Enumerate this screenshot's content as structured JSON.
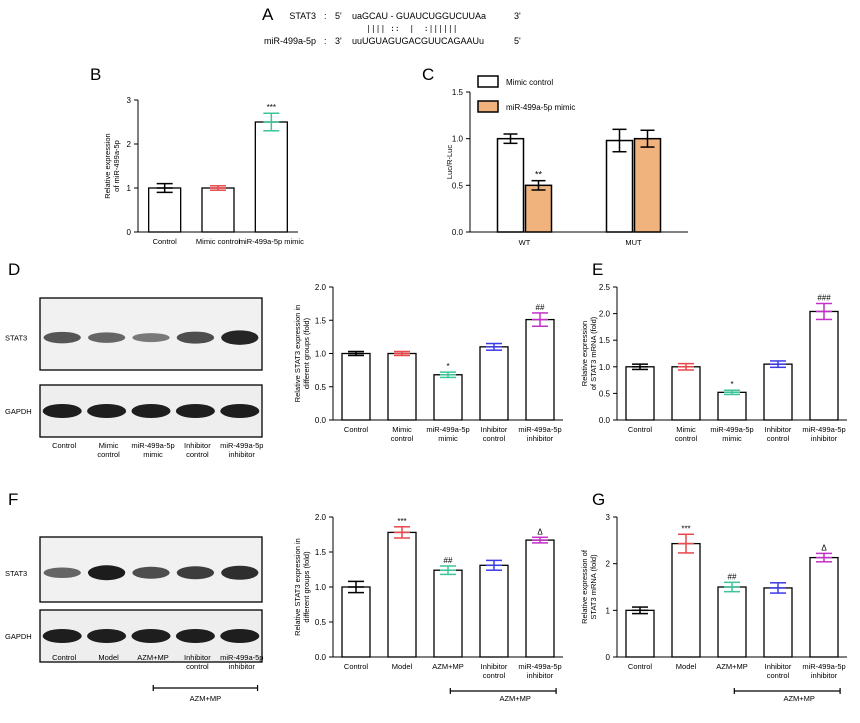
{
  "panel_letters": {
    "A": "A",
    "B": "B",
    "C": "C",
    "D": "D",
    "E": "E",
    "F": "F",
    "G": "G"
  },
  "sequence_panel": {
    "rows": [
      {
        "name": "STAT3",
        "sep": ":",
        "end5": "5'",
        "seq": "uaGCAU - GUAUCUGGUCUUAa",
        "end3": "3'"
      },
      {
        "name": "miR-499a-5p",
        "sep": ":",
        "end5": "3'",
        "seq": "uuUGUAGUGACGUUCAGAAUu",
        "end3": "5'"
      }
    ],
    "pairing": "|||| ::  |  :||||||"
  },
  "chart_data": [
    {
      "panel": "B",
      "type": "bar",
      "ylabel": "Relative expression\nof miR-499a-5p",
      "ylim": [
        0,
        3
      ],
      "ticks": [
        0,
        1,
        2,
        3
      ],
      "categories": [
        "Control",
        "Mimic control",
        "miR-499a-5p mimic"
      ],
      "values": [
        1.0,
        1.0,
        2.5
      ],
      "errors": [
        0.1,
        0.05,
        0.2
      ],
      "bar_colors": [
        "#ffffff",
        "#ffffff",
        "#ffffff"
      ],
      "err_colors": [
        "#000000",
        "#e8474b",
        "#3cc49a"
      ],
      "sig": [
        "",
        "",
        "***"
      ]
    },
    {
      "panel": "C",
      "type": "bar",
      "ylabel": "Luc/R-Luc",
      "ylim": [
        0,
        1.5
      ],
      "ticks": [
        0.0,
        0.5,
        1.0,
        1.5
      ],
      "categories": [
        "WT",
        "MUT"
      ],
      "series": [
        {
          "name": "Mimic control",
          "values": [
            1.0,
            0.98
          ],
          "errors": [
            0.05,
            0.12
          ],
          "color": "#ffffff"
        },
        {
          "name": "miR-499a-5p mimic",
          "values": [
            0.5,
            1.0
          ],
          "errors": [
            0.05,
            0.09
          ],
          "color": "#f0b37e"
        }
      ],
      "sig": [
        [
          "",
          ""
        ],
        [
          "**",
          ""
        ]
      ],
      "legend": "top-right"
    },
    {
      "panel": "D",
      "type": "bar",
      "ylabel": "Relative STAT3 expression in\ndifferent groups (fold)",
      "ylim": [
        0,
        2.0
      ],
      "ticks": [
        0.0,
        0.5,
        1.0,
        1.5,
        2.0
      ],
      "categories": [
        "Control",
        "Mimic\ncontrol",
        "miR-499a-5p\nmimic",
        "Inhibitor\ncontrol",
        "miR-499a-5p\ninhibitor"
      ],
      "values": [
        1.0,
        1.0,
        0.68,
        1.1,
        1.51
      ],
      "errors": [
        0.03,
        0.03,
        0.04,
        0.05,
        0.1
      ],
      "err_colors": [
        "#000000",
        "#e8474b",
        "#3cc49a",
        "#3a3ae8",
        "#c430c8"
      ],
      "sig": [
        "",
        "",
        "*",
        "",
        "##"
      ]
    },
    {
      "panel": "E",
      "type": "bar",
      "ylabel": "Relative expression\nof STAT3 mRNA (fold)",
      "ylim": [
        0,
        2.5
      ],
      "ticks": [
        0.0,
        0.5,
        1.0,
        1.5,
        2.0,
        2.5
      ],
      "categories": [
        "Control",
        "Mimic\ncontrol",
        "miR-499a-5p\nmimic",
        "Inhibitor\ncontrol",
        "miR-499a-5p\ninhibitor"
      ],
      "values": [
        1.0,
        1.0,
        0.52,
        1.05,
        2.04
      ],
      "errors": [
        0.05,
        0.06,
        0.04,
        0.06,
        0.15
      ],
      "err_colors": [
        "#000000",
        "#e8474b",
        "#3cc49a",
        "#3a3ae8",
        "#c430c8"
      ],
      "sig": [
        "",
        "",
        "*",
        "",
        "###"
      ]
    },
    {
      "panel": "F",
      "type": "bar",
      "ylabel": "Relative STAT3 expression in\ndifferent groups (fold)",
      "ylim": [
        0,
        2.0
      ],
      "ticks": [
        0.0,
        0.5,
        1.0,
        1.5,
        2.0
      ],
      "categories": [
        "Control",
        "Model",
        "AZM+MP",
        "Inhibitor\ncontrol",
        "miR-499a-5p\ninhibitor"
      ],
      "values": [
        1.0,
        1.78,
        1.24,
        1.31,
        1.67
      ],
      "errors": [
        0.08,
        0.08,
        0.06,
        0.07,
        0.04
      ],
      "err_colors": [
        "#000000",
        "#e8474b",
        "#3cc49a",
        "#3a3ae8",
        "#c430c8"
      ],
      "sig": [
        "",
        "***",
        "##",
        "",
        "Δ"
      ],
      "bracket_label": "AZM+MP"
    },
    {
      "panel": "G",
      "type": "bar",
      "ylabel": "Relative expression of\nSTAT3 mRNA (fold)",
      "ylim": [
        0,
        3
      ],
      "ticks": [
        0,
        1,
        2,
        3
      ],
      "categories": [
        "Control",
        "Model",
        "AZM+MP",
        "Inhibitor\ncontrol",
        "miR-499a-5p\ninhibitor"
      ],
      "values": [
        1.0,
        2.43,
        1.5,
        1.48,
        2.13
      ],
      "errors": [
        0.07,
        0.2,
        0.1,
        0.11,
        0.09
      ],
      "err_colors": [
        "#000000",
        "#e8474b",
        "#3cc49a",
        "#3a3ae8",
        "#c430c8"
      ],
      "sig": [
        "",
        "***",
        "##",
        "",
        "Δ"
      ],
      "bracket_label": "AZM+MP"
    }
  ],
  "blots": [
    {
      "panel": "D",
      "rows": [
        "STAT3",
        "GAPDH"
      ],
      "stat3_intensity": [
        0.55,
        0.45,
        0.3,
        0.6,
        0.85
      ],
      "lanes": [
        "Control",
        "Mimic\ncontrol",
        "miR-499a-5p\nmimic",
        "Inhibitor\ncontrol",
        "miR-499a-5p\ninhibitor"
      ]
    },
    {
      "panel": "F",
      "rows": [
        "STAT3",
        "GAPDH"
      ],
      "stat3_intensity": [
        0.45,
        0.9,
        0.6,
        0.7,
        0.8
      ],
      "lanes": [
        "Control",
        "Model",
        "AZM+MP",
        "Inhibitor\ncontrol",
        "miR-499a-5p\ninhibitor"
      ],
      "bracket_label": "AZM+MP"
    }
  ]
}
